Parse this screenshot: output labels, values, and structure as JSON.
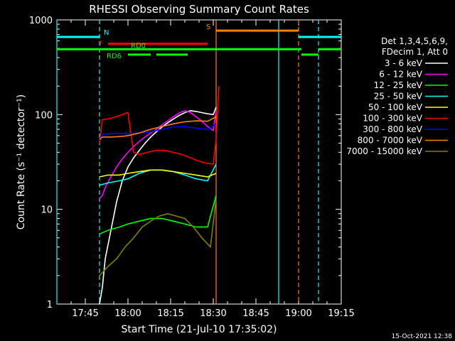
{
  "chart_data": {
    "type": "line",
    "title": "RHESSI Observing Summary Count Rates",
    "xlabel": "Start Time (21-Jul-10 17:35:02)",
    "ylabel": "Count Rate (s⁻¹ detector⁻¹)",
    "y_scale": "log",
    "ylim": [
      1,
      1000
    ],
    "xlim": [
      "17:35",
      "19:15"
    ],
    "x_ticks": [
      "17:45",
      "18:00",
      "18:15",
      "18:30",
      "18:45",
      "19:00",
      "19:15"
    ],
    "y_ticks": [
      "1",
      "10",
      "100",
      "1000"
    ],
    "timestamp": "15-Oct-2021 12:38",
    "legend_header": [
      "Det 1,3,4,5,6,9,",
      "FDecim 1, Att 0"
    ],
    "legend_position": "right",
    "series": [
      {
        "name": "3 - 6 keV",
        "color": "#ffffff",
        "x": [
          "17:50",
          "17:51",
          "17:52",
          "17:54",
          "17:56",
          "17:58",
          "18:00",
          "18:02",
          "18:04",
          "18:06",
          "18:08",
          "18:10",
          "18:12",
          "18:14",
          "18:16",
          "18:18",
          "18:20",
          "18:22",
          "18:24",
          "18:26",
          "18:28",
          "18:30",
          "18:31"
        ],
        "y": [
          1,
          1.5,
          3,
          6,
          12,
          20,
          28,
          35,
          42,
          50,
          58,
          66,
          74,
          82,
          90,
          98,
          105,
          110,
          108,
          105,
          102,
          100,
          120
        ]
      },
      {
        "name": "6 - 12 keV",
        "color": "#ff00ff",
        "x": [
          "17:50",
          "17:51",
          "17:52",
          "17:54",
          "17:56",
          "17:58",
          "18:00",
          "18:02",
          "18:04",
          "18:06",
          "18:08",
          "18:10",
          "18:12",
          "18:14",
          "18:16",
          "18:18",
          "18:20",
          "18:22",
          "18:24",
          "18:26",
          "18:28",
          "18:30",
          "18:31"
        ],
        "y": [
          13,
          14,
          17,
          22,
          28,
          34,
          40,
          46,
          52,
          58,
          64,
          70,
          78,
          86,
          95,
          104,
          110,
          105,
          95,
          85,
          75,
          68,
          110
        ]
      },
      {
        "name": "12 - 25 keV",
        "color": "#00ff00",
        "x": [
          "17:50",
          "17:53",
          "17:57",
          "18:00",
          "18:04",
          "18:08",
          "18:12",
          "18:16",
          "18:20",
          "18:24",
          "18:28",
          "18:31"
        ],
        "y": [
          5.5,
          6,
          6.5,
          7,
          7.5,
          8,
          8,
          7.5,
          7,
          6.5,
          6.5,
          14
        ]
      },
      {
        "name": "25 - 50 keV",
        "color": "#00ffff",
        "x": [
          "17:50",
          "17:53",
          "17:57",
          "18:00",
          "18:04",
          "18:08",
          "18:12",
          "18:16",
          "18:20",
          "18:24",
          "18:28",
          "18:31"
        ],
        "y": [
          18,
          19,
          20,
          21,
          24,
          26,
          26,
          25,
          23,
          21,
          20,
          30
        ]
      },
      {
        "name": "50 - 100 keV",
        "color": "#ffff00",
        "x": [
          "17:50",
          "17:53",
          "17:57",
          "18:00",
          "18:04",
          "18:08",
          "18:12",
          "18:16",
          "18:20",
          "18:24",
          "18:28",
          "18:31"
        ],
        "y": [
          22,
          23,
          23,
          24,
          25,
          26,
          26,
          25,
          24,
          23,
          22,
          24
        ]
      },
      {
        "name": "100 - 300 keV",
        "color": "#ff0000",
        "x": [
          "17:50",
          "17:51",
          "17:53",
          "17:56",
          "17:58",
          "18:00",
          "18:02",
          "18:04",
          "18:07",
          "18:10",
          "18:13",
          "18:16",
          "18:19",
          "18:21",
          "18:24",
          "18:27",
          "18:30",
          "18:31",
          "18:32"
        ],
        "y": [
          50,
          88,
          90,
          95,
          100,
          105,
          40,
          38,
          40,
          42,
          42,
          40,
          38,
          36,
          33,
          31,
          30,
          55,
          200
        ]
      },
      {
        "name": "300 - 800 keV",
        "color": "#0000ff",
        "x": [
          "17:50",
          "17:51",
          "17:54",
          "17:58",
          "18:00",
          "18:04",
          "18:08",
          "18:12",
          "18:16",
          "18:20",
          "18:24",
          "18:28",
          "18:31"
        ],
        "y": [
          55,
          62,
          63,
          63,
          63,
          64,
          66,
          70,
          74,
          75,
          72,
          70,
          80
        ]
      },
      {
        "name": "800 - 7000 keV",
        "color": "#ff8000",
        "x": [
          "17:50",
          "17:51",
          "17:54",
          "17:58",
          "18:00",
          "18:04",
          "18:08",
          "18:12",
          "18:16",
          "18:20",
          "18:24",
          "18:28",
          "18:31"
        ],
        "y": [
          55,
          58,
          58,
          59,
          60,
          64,
          70,
          75,
          80,
          84,
          86,
          85,
          95
        ]
      },
      {
        "name": "7000 - 15000 keV",
        "color": "#808000",
        "x": [
          "17:50",
          "17:53",
          "17:56",
          "17:59",
          "18:02",
          "18:05",
          "18:08",
          "18:11",
          "18:14",
          "18:17",
          "18:20",
          "18:23",
          "18:26",
          "18:29",
          "18:31"
        ],
        "y": [
          2,
          2.5,
          3,
          4,
          5,
          6.5,
          7.5,
          8.5,
          9,
          8.5,
          8,
          6.5,
          5,
          4,
          13
        ]
      }
    ],
    "state_bars": [
      {
        "label": "N",
        "color": "#00ffff",
        "segments": [
          [
            "17:35",
            "17:50"
          ],
          [
            "19:00",
            "19:15"
          ]
        ],
        "level": 660
      },
      {
        "label": "S",
        "color": "#ff8000",
        "segments": [
          [
            "18:31",
            "19:00"
          ]
        ],
        "level": 770
      },
      {
        "label": "F",
        "color": "#ff0000",
        "segments": [
          [
            "17:53",
            "18:28"
          ]
        ],
        "level": 560
      },
      {
        "label": "RD0",
        "color": "#00ff00",
        "segments": [
          [
            "17:35",
            "19:01"
          ],
          [
            "19:07",
            "19:15"
          ]
        ],
        "level": 490
      },
      {
        "label": "RD6",
        "color": "#00ff00",
        "segments": [
          [
            "18:00",
            "18:08"
          ],
          [
            "18:10",
            "18:21"
          ],
          [
            "19:01",
            "19:07"
          ]
        ],
        "level": 430
      }
    ],
    "vertical_markers": [
      {
        "time": "17:35",
        "color": "#00ffff",
        "style": "solid"
      },
      {
        "time": "17:50",
        "color": "#00ffff",
        "style": "dashed"
      },
      {
        "time": "18:31",
        "color": "#ff8000",
        "style": "solid"
      },
      {
        "time": "18:53",
        "color": "#00ffff",
        "style": "solid"
      },
      {
        "time": "19:00",
        "color": "#ff8000",
        "style": "dashed"
      },
      {
        "time": "19:07",
        "color": "#00ffff",
        "style": "dashed"
      }
    ]
  }
}
